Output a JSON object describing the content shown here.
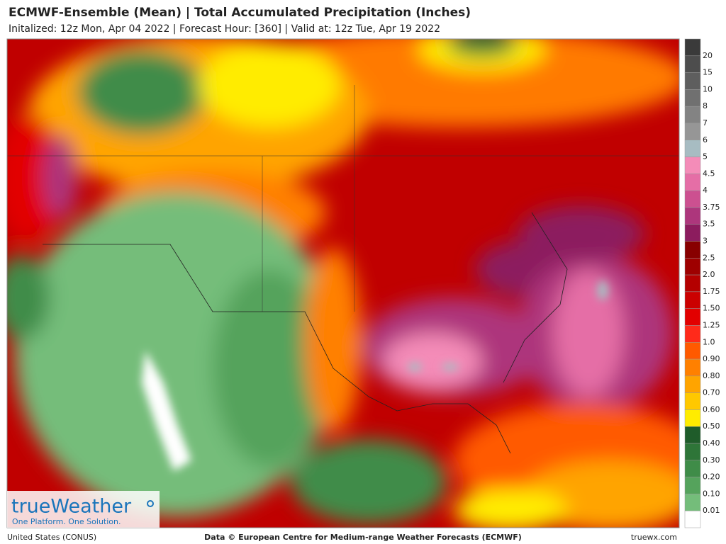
{
  "header": {
    "title": "ECMWF-Ensemble (Mean)  | Total Accumulated Precipitation (Inches)",
    "subtitle": "Initalized: 12z Mon, Apr 04 2022  | Forecast Hour: [360]  | Valid at: 12z Tue, Apr 19 2022"
  },
  "legend": {
    "labels": [
      "20",
      "15",
      "10",
      "8",
      "7",
      "6",
      "5",
      "4.5",
      "4",
      "3.75",
      "3.5",
      "3",
      "2.5",
      "2.0",
      "1.75",
      "1.50",
      "1.25",
      "1.0",
      "0.90",
      "0.80",
      "0.70",
      "0.60",
      "0.50",
      "0.40",
      "0.30",
      "0.20",
      "0.10",
      "0.01"
    ],
    "colors": [
      "#3a3a3a",
      "#4d4d4d",
      "#5e5e5e",
      "#707070",
      "#838383",
      "#969696",
      "#a7bcc2",
      "#f48cb8",
      "#e56ea6",
      "#cc5090",
      "#ad367c",
      "#8c1c5e",
      "#880000",
      "#9e0000",
      "#b40000",
      "#cb0000",
      "#e20000",
      "#ff2a1a",
      "#ff5a00",
      "#ff8000",
      "#ffa400",
      "#ffc800",
      "#ffec00",
      "#1f5c2a",
      "#2e7538",
      "#3f8c48",
      "#55a35c",
      "#74bd7a",
      "#ffffff"
    ]
  },
  "logo": {
    "name": "trueWeather",
    "tagline": "One Platform. One Solution."
  },
  "footer": {
    "left": "United States (CONUS)",
    "center": "Data © European Centre for Medium-range Weather Forecasts (ECMWF)",
    "right": "truewx.com"
  }
}
